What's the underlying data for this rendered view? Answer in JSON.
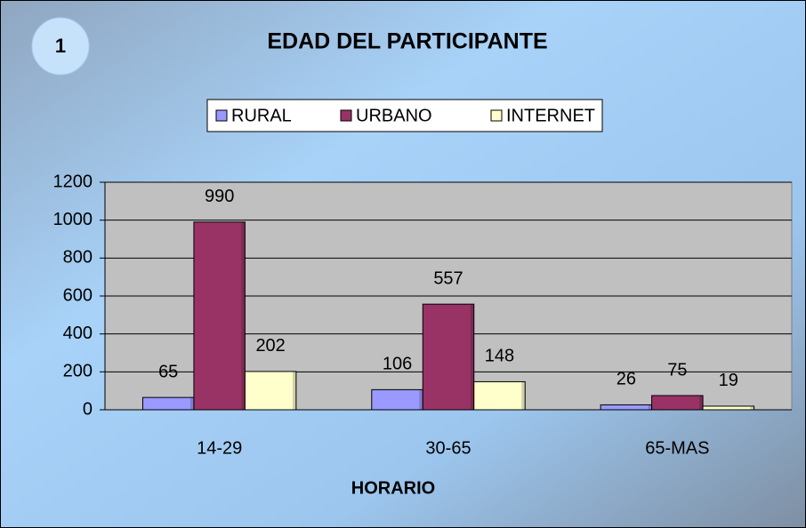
{
  "badge": "1",
  "chart_data": {
    "type": "bar",
    "title": "EDAD DEL PARTICIPANTE",
    "x_label": "HORARIO",
    "categories": [
      "14-29",
      "30-65",
      "65-MAS"
    ],
    "series": [
      {
        "name": "RURAL",
        "color": "#9999ff",
        "values": [
          65,
          106,
          26
        ]
      },
      {
        "name": "URBANO",
        "color": "#993366",
        "values": [
          990,
          557,
          75
        ]
      },
      {
        "name": "INTERNET",
        "color": "#ffffcc",
        "values": [
          202,
          148,
          19
        ]
      }
    ],
    "ylim": [
      0,
      1200
    ],
    "yticks": [
      0,
      200,
      400,
      600,
      800,
      1000,
      1200
    ],
    "grid": true
  }
}
